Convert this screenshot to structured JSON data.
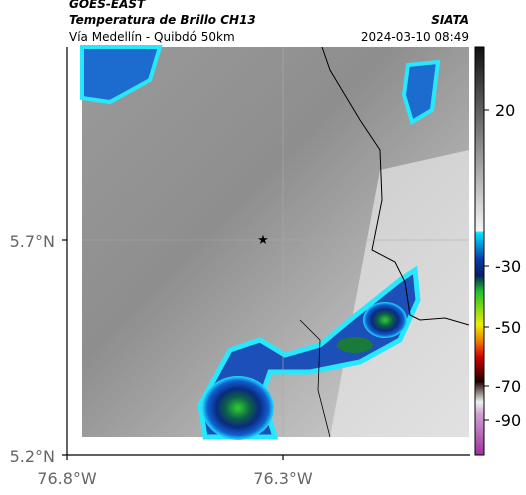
{
  "header": {
    "satellite": "GOES-EAST",
    "product": "Temperatura de Brillo CH13",
    "source": "SIATA",
    "subtitle": "Vía Medellín - Quibdó 50km",
    "timestamp": "2024-03-10 08:49"
  },
  "axes": {
    "y_labels": [
      "5.7°N",
      "5.2°N"
    ],
    "x_labels": [
      "76.8°W",
      "76.3°W"
    ]
  },
  "colorbar": {
    "ticks": [
      20,
      -30,
      -50,
      -70,
      -90
    ]
  }
}
